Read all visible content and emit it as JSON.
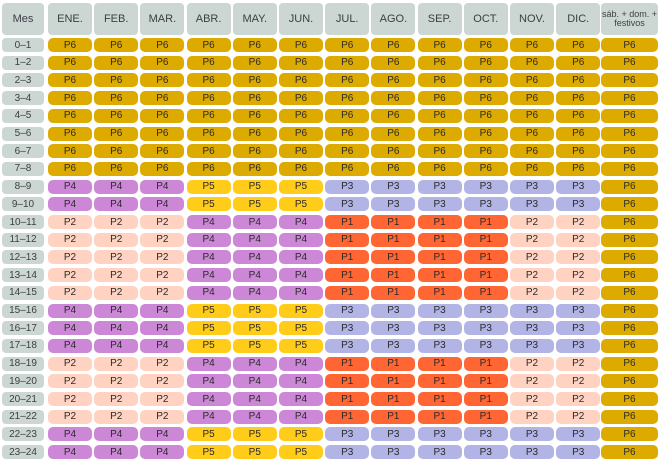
{
  "table": {
    "corner_label": "Mes",
    "columns": [
      "ENE.",
      "FEB.",
      "MAR.",
      "ABR.",
      "MAY.",
      "JUN.",
      "JUL.",
      "AGO.",
      "SEP.",
      "OCT.",
      "NOV.",
      "DIC.",
      "sáb. + dom. + festivos"
    ],
    "rows": [
      {
        "label": "0–1",
        "cells": [
          "P6",
          "P6",
          "P6",
          "P6",
          "P6",
          "P6",
          "P6",
          "P6",
          "P6",
          "P6",
          "P6",
          "P6",
          "P6"
        ]
      },
      {
        "label": "1–2",
        "cells": [
          "P6",
          "P6",
          "P6",
          "P6",
          "P6",
          "P6",
          "P6",
          "P6",
          "P6",
          "P6",
          "P6",
          "P6",
          "P6"
        ]
      },
      {
        "label": "2–3",
        "cells": [
          "P6",
          "P6",
          "P6",
          "P6",
          "P6",
          "P6",
          "P6",
          "P6",
          "P6",
          "P6",
          "P6",
          "P6",
          "P6"
        ]
      },
      {
        "label": "3–4",
        "cells": [
          "P6",
          "P6",
          "P6",
          "P6",
          "P6",
          "P6",
          "P6",
          "P6",
          "P6",
          "P6",
          "P6",
          "P6",
          "P6"
        ]
      },
      {
        "label": "4–5",
        "cells": [
          "P6",
          "P6",
          "P6",
          "P6",
          "P6",
          "P6",
          "P6",
          "P6",
          "P6",
          "P6",
          "P6",
          "P6",
          "P6"
        ]
      },
      {
        "label": "5–6",
        "cells": [
          "P6",
          "P6",
          "P6",
          "P6",
          "P6",
          "P6",
          "P6",
          "P6",
          "P6",
          "P6",
          "P6",
          "P6",
          "P6"
        ]
      },
      {
        "label": "6–7",
        "cells": [
          "P6",
          "P6",
          "P6",
          "P6",
          "P6",
          "P6",
          "P6",
          "P6",
          "P6",
          "P6",
          "P6",
          "P6",
          "P6"
        ]
      },
      {
        "label": "7–8",
        "cells": [
          "P6",
          "P6",
          "P6",
          "P6",
          "P6",
          "P6",
          "P6",
          "P6",
          "P6",
          "P6",
          "P6",
          "P6",
          "P6"
        ]
      },
      {
        "label": "8–9",
        "cells": [
          "P4",
          "P4",
          "P4",
          "P5",
          "P5",
          "P5",
          "P3",
          "P3",
          "P3",
          "P3",
          "P3",
          "P3",
          "P6"
        ]
      },
      {
        "label": "9–10",
        "cells": [
          "P4",
          "P4",
          "P4",
          "P5",
          "P5",
          "P5",
          "P3",
          "P3",
          "P3",
          "P3",
          "P3",
          "P3",
          "P6"
        ]
      },
      {
        "label": "10–11",
        "cells": [
          "P2",
          "P2",
          "P2",
          "P4",
          "P4",
          "P4",
          "P1",
          "P1",
          "P1",
          "P1",
          "P2",
          "P2",
          "P6"
        ]
      },
      {
        "label": "11–12",
        "cells": [
          "P2",
          "P2",
          "P2",
          "P4",
          "P4",
          "P4",
          "P1",
          "P1",
          "P1",
          "P1",
          "P2",
          "P2",
          "P6"
        ]
      },
      {
        "label": "12–13",
        "cells": [
          "P2",
          "P2",
          "P2",
          "P4",
          "P4",
          "P4",
          "P1",
          "P1",
          "P1",
          "P1",
          "P2",
          "P2",
          "P6"
        ]
      },
      {
        "label": "13–14",
        "cells": [
          "P2",
          "P2",
          "P2",
          "P4",
          "P4",
          "P4",
          "P1",
          "P1",
          "P1",
          "P1",
          "P2",
          "P2",
          "P6"
        ]
      },
      {
        "label": "14–15",
        "cells": [
          "P2",
          "P2",
          "P2",
          "P4",
          "P4",
          "P4",
          "P1",
          "P1",
          "P1",
          "P1",
          "P2",
          "P2",
          "P6"
        ]
      },
      {
        "label": "15–16",
        "cells": [
          "P4",
          "P4",
          "P4",
          "P5",
          "P5",
          "P5",
          "P3",
          "P3",
          "P3",
          "P3",
          "P3",
          "P3",
          "P6"
        ]
      },
      {
        "label": "16–17",
        "cells": [
          "P4",
          "P4",
          "P4",
          "P5",
          "P5",
          "P5",
          "P3",
          "P3",
          "P3",
          "P3",
          "P3",
          "P3",
          "P6"
        ]
      },
      {
        "label": "17–18",
        "cells": [
          "P4",
          "P4",
          "P4",
          "P5",
          "P5",
          "P5",
          "P3",
          "P3",
          "P3",
          "P3",
          "P3",
          "P3",
          "P6"
        ]
      },
      {
        "label": "18–19",
        "cells": [
          "P2",
          "P2",
          "P2",
          "P4",
          "P4",
          "P4",
          "P1",
          "P1",
          "P1",
          "P1",
          "P2",
          "P2",
          "P6"
        ]
      },
      {
        "label": "19–20",
        "cells": [
          "P2",
          "P2",
          "P2",
          "P4",
          "P4",
          "P4",
          "P1",
          "P1",
          "P1",
          "P1",
          "P2",
          "P2",
          "P6"
        ]
      },
      {
        "label": "20–21",
        "cells": [
          "P2",
          "P2",
          "P2",
          "P4",
          "P4",
          "P4",
          "P1",
          "P1",
          "P1",
          "P1",
          "P2",
          "P2",
          "P6"
        ]
      },
      {
        "label": "21–22",
        "cells": [
          "P2",
          "P2",
          "P2",
          "P4",
          "P4",
          "P4",
          "P1",
          "P1",
          "P1",
          "P1",
          "P2",
          "P2",
          "P6"
        ]
      },
      {
        "label": "22–23",
        "cells": [
          "P4",
          "P4",
          "P4",
          "P5",
          "P5",
          "P5",
          "P3",
          "P3",
          "P3",
          "P3",
          "P3",
          "P3",
          "P6"
        ]
      },
      {
        "label": "23–24",
        "cells": [
          "P4",
          "P4",
          "P4",
          "P5",
          "P5",
          "P5",
          "P3",
          "P3",
          "P3",
          "P3",
          "P3",
          "P3",
          "P6"
        ]
      }
    ]
  },
  "period_colors": {
    "P1": "#ff6633",
    "P2": "#ffd2c2",
    "P3": "#b3b4e6",
    "P4": "#cc88d6",
    "P5": "#ffcc1a",
    "P6": "#ddaa00"
  },
  "header_color": "#ccd6d2"
}
